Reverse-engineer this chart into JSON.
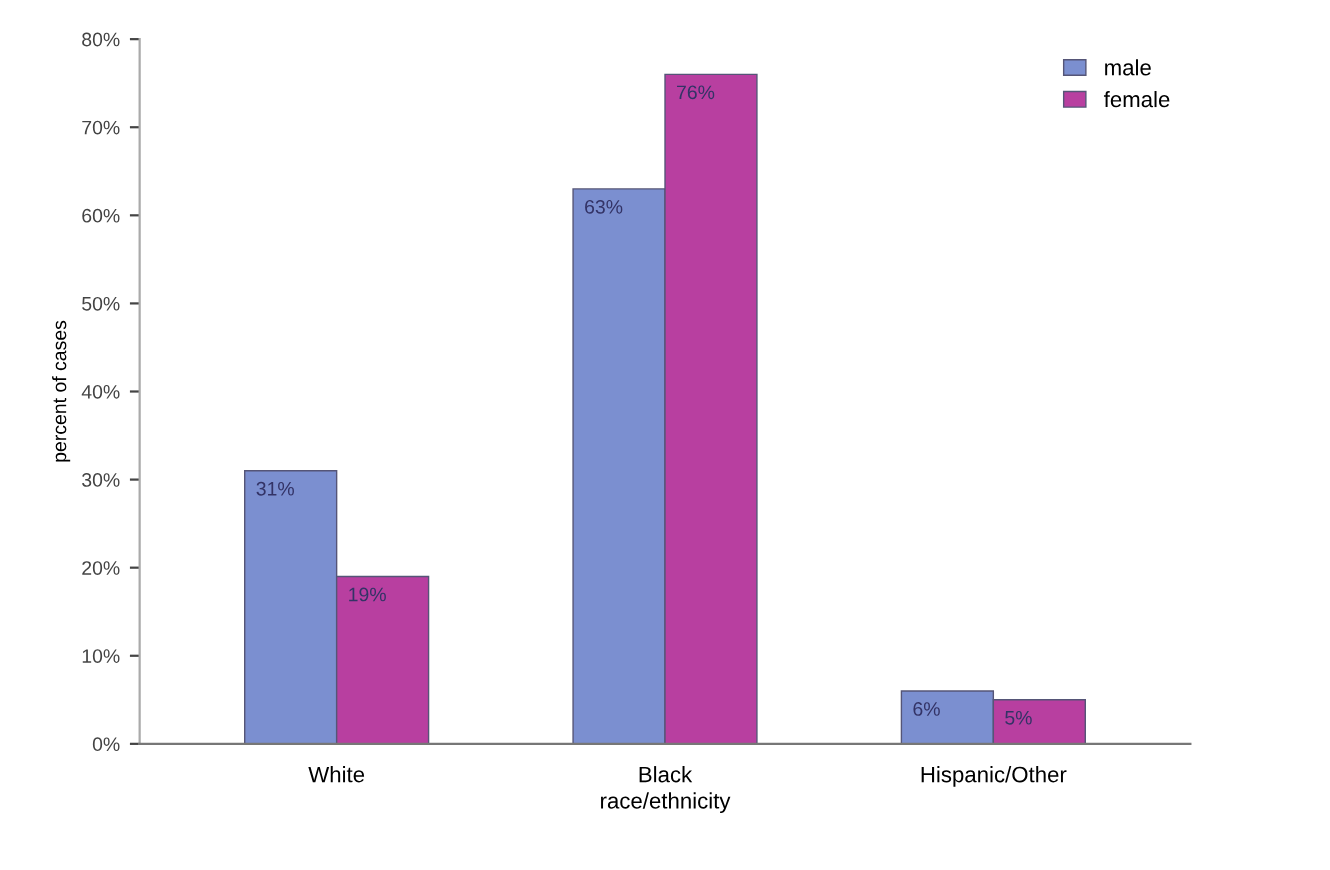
{
  "chart_data": {
    "type": "bar",
    "xlabel": "race/ethnicity",
    "ylabel": "percent of cases",
    "categories": [
      "White",
      "Black",
      "Hispanic/Other"
    ],
    "series": [
      {
        "name": "male",
        "color": "#7b8fd0",
        "values": [
          31,
          63,
          6
        ],
        "value_labels": [
          "31%",
          "63%",
          "6%"
        ]
      },
      {
        "name": "female",
        "color": "#b83fa0",
        "values": [
          19,
          76,
          5
        ],
        "value_labels": [
          "19%",
          "76%",
          "5%"
        ]
      }
    ],
    "ylim": [
      0,
      80
    ],
    "yticks": [
      {
        "value": 0,
        "label": "0%"
      },
      {
        "value": 10,
        "label": "10%"
      },
      {
        "value": 20,
        "label": "20%"
      },
      {
        "value": 30,
        "label": "30%"
      },
      {
        "value": 40,
        "label": "40%"
      },
      {
        "value": 50,
        "label": "50%"
      },
      {
        "value": 60,
        "label": "60%"
      },
      {
        "value": 70,
        "label": "70%"
      },
      {
        "value": 80,
        "label": "80%"
      }
    ],
    "legend": "top right",
    "grid": false
  }
}
